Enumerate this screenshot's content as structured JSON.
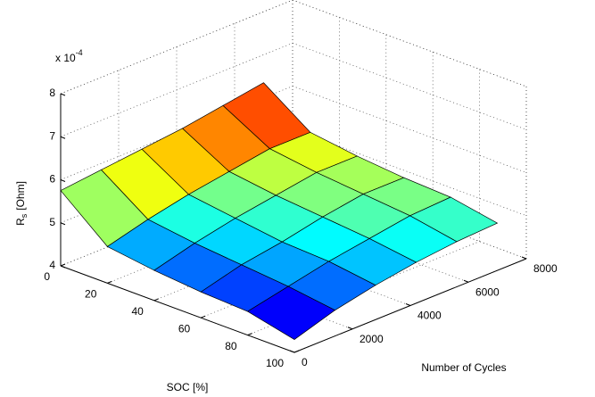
{
  "chart_data": {
    "type": "surface",
    "x_label": "SOC [%]",
    "y_label": "Number of Cycles",
    "z_label": {
      "main": "R",
      "sub": "s",
      "rest": "[Ohm]"
    },
    "z_multiplier": {
      "text": "x 10",
      "exponent": "-4"
    },
    "x": [
      0,
      20,
      40,
      60,
      80,
      100
    ],
    "y": [
      0,
      1400,
      2800,
      4200,
      5600,
      7000
    ],
    "z": [
      [
        5.75,
        5.85,
        5.95,
        6.05,
        6.2,
        6.35
      ],
      [
        4.85,
        5.1,
        5.3,
        5.45,
        5.6,
        5.6
      ],
      [
        4.7,
        4.95,
        5.15,
        5.3,
        5.45,
        5.45
      ],
      [
        4.6,
        4.85,
        5.0,
        5.2,
        5.35,
        5.35
      ],
      [
        4.55,
        4.75,
        4.95,
        5.1,
        5.25,
        5.3
      ],
      [
        4.3,
        4.6,
        4.8,
        4.95,
        5.05,
        5.1
      ]
    ],
    "xlim": [
      0,
      100
    ],
    "ylim": [
      0,
      8000
    ],
    "zlim": [
      4,
      8
    ],
    "xticks": [
      0,
      20,
      40,
      60,
      80,
      100
    ],
    "yticks": [
      0,
      2000,
      4000,
      6000,
      8000
    ],
    "zticks": [
      4,
      5,
      6,
      7,
      8
    ],
    "grid": true,
    "colormap": "jet"
  }
}
